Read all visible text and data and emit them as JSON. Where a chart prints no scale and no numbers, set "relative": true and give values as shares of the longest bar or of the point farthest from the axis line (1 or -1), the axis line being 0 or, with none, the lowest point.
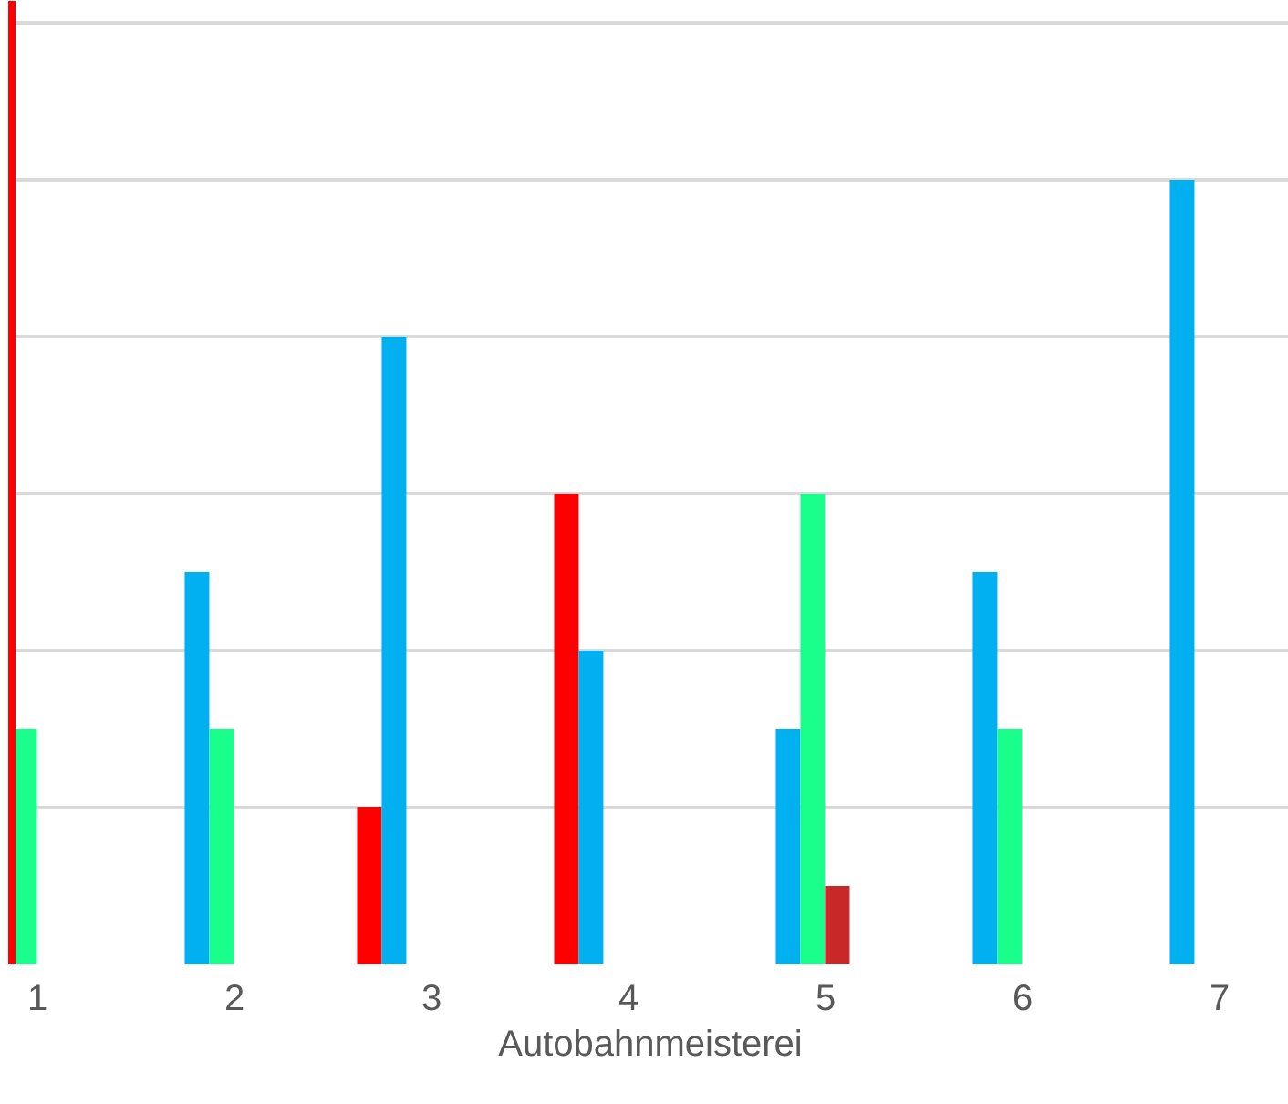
{
  "chart_data": {
    "type": "bar",
    "relative": true,
    "xlabel": "Autobahnmeisterei",
    "categories": [
      "1",
      "2",
      "3",
      "4",
      "5",
      "6",
      "7"
    ],
    "grid": "y",
    "series": [
      {
        "color": "#ff0000",
        "values": [
          null,
          null,
          0.2,
          0.6,
          null,
          null,
          null
        ]
      },
      {
        "color": "#00b0f0",
        "values": [
          null,
          0.5,
          0.8,
          0.4,
          0.3,
          0.5,
          1
        ]
      },
      {
        "color": "#1aff8c",
        "values": [
          0.3,
          0.3,
          null,
          null,
          0.6,
          0.3,
          null
        ]
      },
      {
        "color": "#c82828",
        "values": [
          null,
          null,
          null,
          null,
          0.1,
          null,
          null
        ]
      }
    ]
  }
}
